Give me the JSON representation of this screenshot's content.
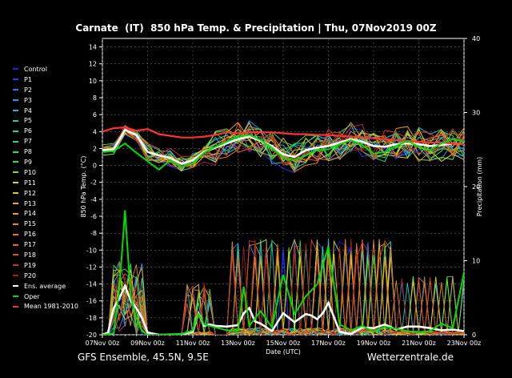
{
  "title": "Carnate  (IT)  850 hPa Temp. & Precipitation | Thu, 07Nov2019 00Z",
  "footer": {
    "left": "GFS Ensemble, 45.5N, 9.5E",
    "right": "Wetterzentrale.de"
  },
  "chart_data": {
    "type": "line",
    "xlabel": "Date (UTC)",
    "ylabel": "850 hPa Temp. (°C)",
    "y2label": "Precipitation (mm)",
    "xlim": [
      0,
      16
    ],
    "ylim": [
      -20,
      15
    ],
    "y2lim": [
      0,
      40
    ],
    "x_ticks": [
      "07Nov 00z",
      "09Nov 00z",
      "11Nov 00z",
      "13Nov 00z",
      "15Nov 00z",
      "17Nov 00z",
      "19Nov 00z",
      "21Nov 00z",
      "23Nov 00z"
    ],
    "y_ticks": [
      -20,
      -18,
      -16,
      -14,
      -12,
      -10,
      -8,
      -6,
      -4,
      -2,
      0,
      2,
      4,
      6,
      8,
      10,
      12,
      14
    ],
    "y2_ticks": [
      0,
      10,
      20,
      30,
      40
    ],
    "grid": true,
    "legend_position": "left",
    "legend": [
      {
        "name": "Control",
        "color": "#1a1aff"
      },
      {
        "name": "P1",
        "color": "#1e3cff"
      },
      {
        "name": "P2",
        "color": "#2878ff"
      },
      {
        "name": "P3",
        "color": "#1e9bff"
      },
      {
        "name": "P4",
        "color": "#1eb4dc"
      },
      {
        "name": "P5",
        "color": "#1ec8c8"
      },
      {
        "name": "P6",
        "color": "#1ed2aa"
      },
      {
        "name": "P7",
        "color": "#1edc8c"
      },
      {
        "name": "P8",
        "color": "#1ee664"
      },
      {
        "name": "P9",
        "color": "#28e628"
      },
      {
        "name": "P10",
        "color": "#78e61e"
      },
      {
        "name": "P11",
        "color": "#dcdc1e"
      },
      {
        "name": "P12",
        "color": "#e6c81e"
      },
      {
        "name": "P13",
        "color": "#e6b41e"
      },
      {
        "name": "P14",
        "color": "#e6a01e"
      },
      {
        "name": "P15",
        "color": "#e68c1e"
      },
      {
        "name": "P16",
        "color": "#e6781e"
      },
      {
        "name": "P17",
        "color": "#e6641e"
      },
      {
        "name": "P18",
        "color": "#dc501e"
      },
      {
        "name": "P19",
        "color": "#c83232"
      },
      {
        "name": "P20",
        "color": "#a01e1e"
      },
      {
        "name": "Ens. average",
        "color": "#ffffff"
      },
      {
        "name": "Oper",
        "color": "#00dc00"
      },
      {
        "name": "Mean 1981-2010",
        "color": "#ff3232"
      }
    ],
    "series": [
      {
        "name": "Ens. average",
        "axis": "temp",
        "x": [
          0,
          0.5,
          1,
          1.5,
          2,
          2.5,
          3,
          3.5,
          4,
          4.5,
          5,
          5.5,
          6,
          6.5,
          7,
          7.5,
          8,
          8.5,
          9,
          9.5,
          10,
          10.5,
          11,
          11.5,
          12,
          12.5,
          13,
          13.5,
          14,
          14.5,
          15,
          15.5,
          16
        ],
        "values": [
          1.8,
          1.9,
          4.2,
          3.6,
          1.6,
          1.2,
          0.9,
          0.2,
          0.6,
          1.6,
          2.1,
          2.6,
          3.1,
          3.4,
          2.9,
          2.3,
          1.3,
          1.0,
          1.8,
          2.1,
          2.3,
          2.7,
          3.1,
          2.8,
          2.3,
          2.2,
          2.5,
          2.6,
          2.5,
          2.3,
          2.4,
          2.6,
          2.5
        ]
      },
      {
        "name": "Mean 1981-2010",
        "axis": "temp",
        "x": [
          0,
          0.5,
          1,
          1.5,
          2,
          2.5,
          3,
          3.5,
          4,
          4.5,
          5,
          5.5,
          6,
          6.5,
          7,
          7.5,
          8,
          8.5,
          9,
          9.5,
          10,
          10.5,
          11,
          11.5,
          12,
          12.5,
          13,
          13.5,
          14,
          14.5,
          15,
          15.5,
          16
        ],
        "values": [
          4.0,
          4.4,
          4.5,
          4.1,
          4.3,
          3.7,
          3.5,
          3.3,
          3.3,
          3.4,
          3.6,
          3.9,
          3.8,
          3.9,
          3.9,
          3.9,
          3.8,
          3.7,
          3.7,
          3.6,
          3.6,
          3.5,
          3.4,
          3.3,
          3.2,
          3.1,
          3.0,
          2.9,
          2.8,
          2.7,
          2.7,
          2.6,
          2.5
        ]
      },
      {
        "name": "Oper",
        "axis": "temp",
        "x": [
          0,
          0.5,
          1,
          1.5,
          2,
          2.5,
          3,
          3.5,
          4,
          4.5,
          5,
          5.5,
          6,
          6.5,
          7,
          7.5,
          8,
          8.5,
          9,
          9.5,
          10,
          10.5,
          11,
          11.5,
          12,
          12.5,
          13,
          13.5,
          14,
          14.5,
          15,
          15.5,
          16
        ],
        "values": [
          1.6,
          1.7,
          2.6,
          1.5,
          0.5,
          -0.5,
          0.6,
          -0.2,
          0.3,
          1.5,
          2.2,
          2.8,
          3.4,
          3.6,
          3.0,
          2.1,
          0.9,
          0.6,
          1.2,
          1.8,
          1.9,
          2.5,
          3.0,
          2.4,
          1.4,
          1.6,
          2.3,
          2.9,
          2.2,
          1.8,
          2.6,
          3.1,
          2.8
        ]
      },
      {
        "name": "Ens. average",
        "axis": "precip",
        "x": [
          0,
          0.25,
          0.5,
          0.75,
          1,
          1.25,
          1.5,
          1.75,
          2,
          2.5,
          3,
          3.5,
          4,
          4.25,
          4.5,
          4.75,
          5,
          5.5,
          6,
          6.25,
          6.5,
          6.75,
          7,
          7.5,
          8,
          8.5,
          9,
          9.25,
          9.5,
          9.75,
          10,
          10.5,
          11,
          11.5,
          12,
          12.5,
          13,
          13.5,
          14,
          14.5,
          15,
          15.5,
          16
        ],
        "values": [
          0,
          0.3,
          3.6,
          4.9,
          6.6,
          4.6,
          3.6,
          2.3,
          0.3,
          0,
          0,
          0.1,
          0.4,
          2.9,
          1.2,
          1.4,
          1.2,
          1.1,
          1.3,
          2.9,
          3.6,
          1.8,
          1.5,
          0.5,
          2.9,
          1.7,
          2.8,
          2.6,
          2.1,
          2.9,
          4.3,
          0.4,
          0.1,
          1.0,
          0.9,
          1.4,
          0.7,
          1.1,
          1.1,
          0.9,
          0.6,
          0.7,
          0.5
        ]
      },
      {
        "name": "Oper",
        "axis": "precip",
        "x": [
          0,
          0.5,
          0.75,
          1,
          1.25,
          1.5,
          1.75,
          2,
          2.5,
          3,
          3.5,
          4,
          4.25,
          4.5,
          5,
          5.5,
          6,
          6.25,
          6.5,
          7,
          7.5,
          8,
          8.5,
          9,
          9.5,
          10,
          10.5,
          11,
          11.5,
          12,
          12.5,
          13,
          13.5,
          14,
          14.5,
          15,
          15.5,
          16
        ],
        "values": [
          0,
          0.2,
          6.2,
          16.8,
          5.2,
          2.3,
          0.5,
          0,
          0,
          0.1,
          0.1,
          0.6,
          2.8,
          1.4,
          1.0,
          0.6,
          0.5,
          6.5,
          1.2,
          3.2,
          1.0,
          8.1,
          2.8,
          5.2,
          6.8,
          11.9,
          1.4,
          0.6,
          1.2,
          0.4,
          1.1,
          0.8,
          0.5,
          0.3,
          0.5,
          1.5,
          0.9,
          8.4
        ]
      }
    ]
  }
}
